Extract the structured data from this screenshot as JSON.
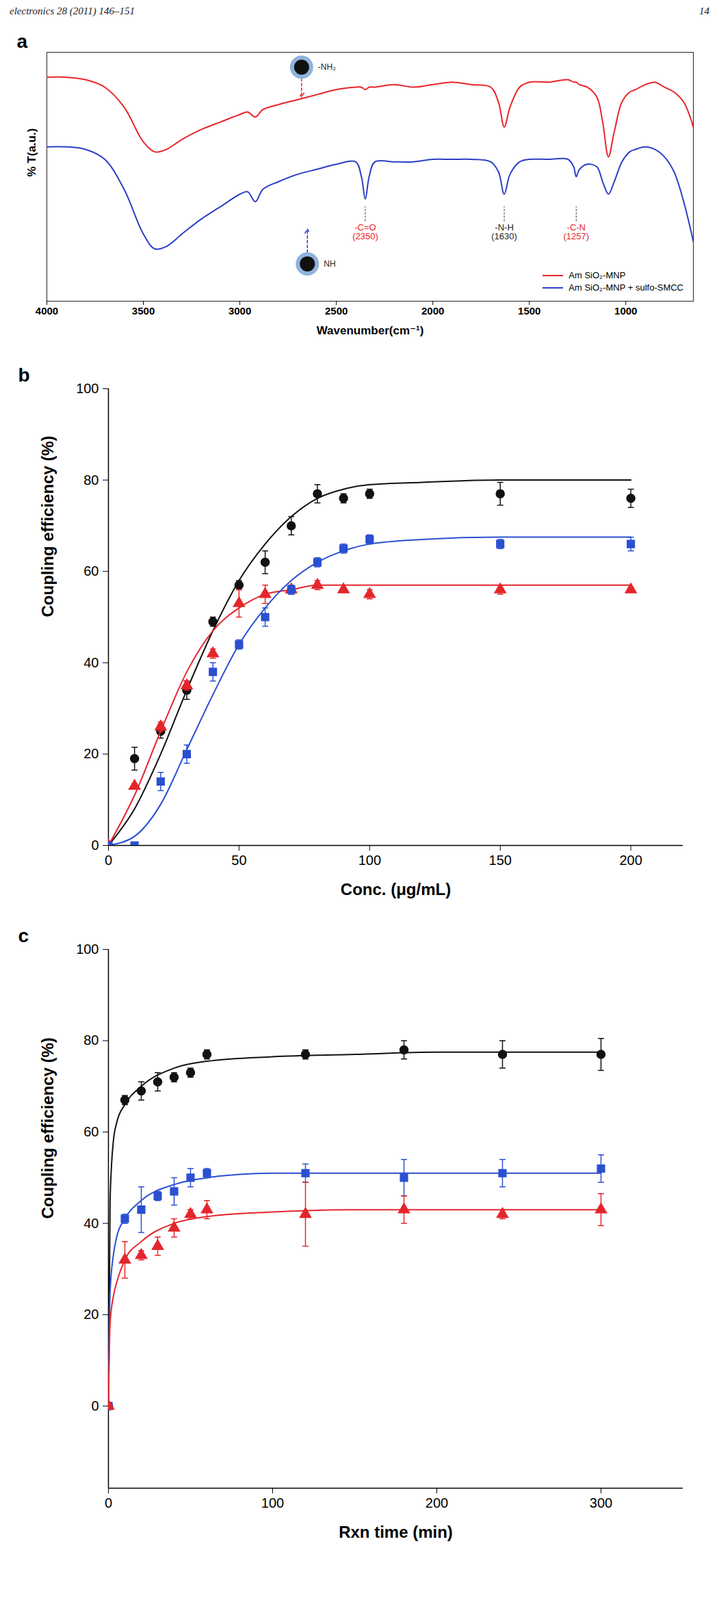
{
  "header": {
    "left": "electronics 28 (2011) 146–151",
    "right": "14"
  },
  "chart_data": [
    {
      "panel": "a",
      "type": "line",
      "xlabel": "Wavenumber(cm⁻¹)",
      "ylabel": "% T(a.u.)",
      "xlim": [
        4000,
        650
      ],
      "xticks": [
        4000,
        3500,
        3000,
        2500,
        2000,
        1500,
        1000
      ],
      "ylim": [
        0,
        100
      ],
      "yticks": [],
      "tick_labels": "x",
      "legend": "bottom-right",
      "x": [
        4000,
        3900,
        3800,
        3700,
        3600,
        3500,
        3440,
        3380,
        3300,
        3200,
        3100,
        3000,
        2960,
        2920,
        2880,
        2800,
        2700,
        2600,
        2500,
        2400,
        2370,
        2350,
        2330,
        2300,
        2200,
        2100,
        2000,
        1900,
        1800,
        1700,
        1660,
        1630,
        1600,
        1550,
        1500,
        1400,
        1300,
        1270,
        1257,
        1240,
        1200,
        1150,
        1120,
        1090,
        1060,
        1020,
        980,
        950,
        900,
        850,
        800,
        750,
        700,
        650
      ],
      "series": [
        {
          "name": "Am SiO₂-MNP",
          "color": "#e8242a",
          "values": [
            90,
            90,
            89,
            86,
            78,
            64,
            60,
            61,
            65,
            69,
            72,
            75,
            76,
            74,
            77,
            79,
            81,
            83,
            85,
            86,
            86,
            85,
            86,
            86,
            87,
            86,
            87,
            88,
            87,
            86,
            80,
            70,
            78,
            86,
            88,
            88,
            89,
            88,
            88,
            87,
            86,
            82,
            72,
            58,
            68,
            80,
            84,
            85,
            87,
            88,
            86,
            84,
            80,
            70
          ]
        },
        {
          "name": "Am SiO₂-MNP + sulfo-SMCC",
          "color": "#2b3fc7",
          "values": [
            62,
            62,
            61,
            57,
            45,
            27,
            21,
            22,
            27,
            33,
            38,
            43,
            44,
            40,
            45,
            48,
            51,
            53,
            55,
            56,
            50,
            41,
            50,
            56,
            56,
            56,
            57,
            57,
            57,
            56,
            52,
            43,
            51,
            56,
            57,
            57,
            57,
            54,
            50,
            53,
            55,
            54,
            48,
            43,
            48,
            56,
            60,
            61,
            62,
            61,
            58,
            52,
            40,
            24
          ]
        }
      ],
      "annotations": [
        {
          "x": 2350,
          "y": 31,
          "label": "-C=O\n(2350)",
          "color": "#e8242a"
        },
        {
          "x": 1630,
          "y": 31,
          "label": "-N-H\n(1630)",
          "color": "#222222"
        },
        {
          "x": 1257,
          "y": 31,
          "label": "-C-N\n(1257)",
          "color": "#e8242a"
        }
      ],
      "icons": [
        {
          "x": 2680,
          "y": 94,
          "label": "-NH₂",
          "color": "#e8242a"
        },
        {
          "x": 2650,
          "y": 15,
          "label": "NH",
          "color": "#2b3fc7"
        }
      ]
    },
    {
      "panel": "b",
      "type": "scatter",
      "xlabel": "Conc. (μg/mL)",
      "ylabel": "Coupling efficiency (%)",
      "xlim": [
        0,
        220
      ],
      "xticks": [
        0,
        50,
        100,
        150,
        200
      ],
      "ylim": [
        0,
        100
      ],
      "yticks": [
        0,
        20,
        40,
        60,
        80,
        100
      ],
      "x": [
        0,
        10,
        20,
        30,
        40,
        50,
        60,
        70,
        80,
        90,
        100,
        150,
        200
      ],
      "fit_x": [
        0,
        10,
        20,
        30,
        40,
        50,
        60,
        70,
        80,
        90,
        100,
        120,
        150,
        200
      ],
      "series": [
        {
          "color": "#111111",
          "marker": "circle",
          "values": [
            0,
            19,
            25,
            34,
            49,
            57,
            62,
            70,
            77,
            76,
            77,
            77,
            76
          ],
          "errors": [
            0,
            2.5,
            1.5,
            2,
            1,
            1,
            2.5,
            2,
            2,
            1,
            1,
            2.5,
            2
          ],
          "fit": [
            0,
            8,
            20,
            34,
            47,
            58,
            66,
            72,
            76,
            78,
            79,
            79.5,
            80,
            80
          ]
        },
        {
          "color": "#e4262c",
          "marker": "triangle",
          "values": [
            0,
            13,
            26,
            35,
            42,
            53,
            55,
            56,
            57,
            56,
            55,
            56,
            56
          ],
          "errors": [
            0,
            0.5,
            1,
            1,
            1,
            3,
            2,
            1,
            1,
            0.5,
            1,
            1,
            0.5
          ],
          "fit": [
            0,
            11,
            25,
            38,
            47,
            52,
            55,
            56,
            57,
            57,
            57,
            57,
            57,
            57
          ]
        },
        {
          "color": "#2a4fd0",
          "marker": "square",
          "values": [
            0,
            0,
            14,
            20,
            38,
            44,
            50,
            56,
            62,
            65,
            67,
            66,
            66
          ],
          "errors": [
            0,
            0.5,
            2,
            2,
            2,
            1,
            2,
            1,
            1,
            1,
            1,
            1,
            1.5
          ],
          "fit": [
            0,
            2,
            9,
            21,
            33,
            44,
            52,
            58,
            62,
            64.5,
            66,
            67,
            67.5,
            67.5
          ]
        }
      ]
    },
    {
      "panel": "c",
      "type": "scatter",
      "xlabel": "Rxn time (min)",
      "ylabel": "Coupling efficiency (%)",
      "xlim": [
        0,
        350
      ],
      "xticks": [
        0,
        100,
        200,
        300
      ],
      "ylim": [
        -18,
        100
      ],
      "yticks": [
        0,
        20,
        40,
        60,
        80,
        100
      ],
      "x": [
        0,
        10,
        20,
        30,
        40,
        50,
        60,
        120,
        180,
        240,
        300
      ],
      "fit_x": [
        0,
        1,
        3,
        5,
        10,
        20,
        40,
        60,
        100,
        150,
        200,
        300
      ],
      "series": [
        {
          "color": "#111111",
          "marker": "circle",
          "values": [
            0,
            67,
            69,
            71,
            72,
            73,
            77,
            77,
            78,
            77,
            77
          ],
          "errors": [
            0,
            1,
            2,
            2,
            1,
            1,
            1,
            1,
            2,
            3,
            3.5
          ],
          "fit": [
            0,
            45,
            58,
            62,
            66,
            70,
            74,
            75.5,
            76.5,
            77,
            77.5,
            77.5
          ]
        },
        {
          "color": "#2a4fd0",
          "marker": "square",
          "values": [
            0,
            41,
            43,
            46,
            47,
            50,
            51,
            51,
            50,
            51,
            52
          ],
          "errors": [
            0,
            1,
            5,
            1,
            3,
            2,
            1,
            2,
            4,
            3,
            3
          ],
          "fit": [
            0,
            25,
            33,
            37,
            41,
            45,
            48.5,
            50,
            51,
            51,
            51,
            51
          ]
        },
        {
          "color": "#e4262c",
          "marker": "triangle",
          "values": [
            0,
            32,
            33,
            35,
            39,
            42,
            43,
            42,
            43,
            42,
            43
          ],
          "errors": [
            0,
            4,
            1,
            2,
            2,
            1,
            2,
            7,
            3,
            1,
            3.5
          ],
          "fit": [
            0,
            18,
            24,
            27,
            32,
            36,
            40,
            41.5,
            42.5,
            43,
            43,
            43
          ]
        }
      ]
    }
  ]
}
